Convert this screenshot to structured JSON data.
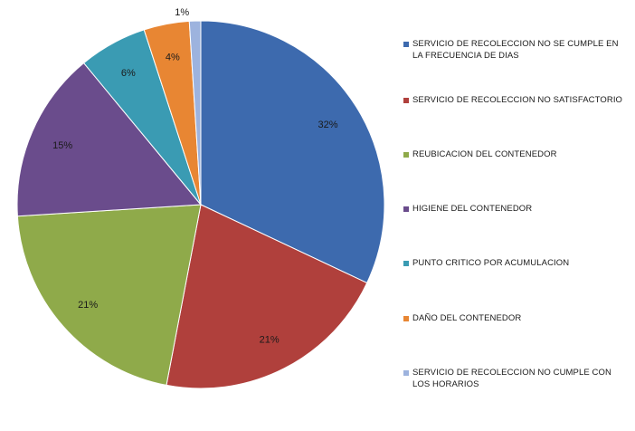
{
  "chart_data": {
    "type": "pie",
    "slices": [
      {
        "label": "SERVICIO DE RECOLECCION NO SE CUMPLE EN LA FRECUENCIA DE DIAS",
        "value": 32,
        "pct_text": "32%",
        "color": "#3D6AAE"
      },
      {
        "label": "SERVICIO DE RECOLECCION NO SATISFACTORIO",
        "value": 21,
        "pct_text": "21%",
        "color": "#B0403C"
      },
      {
        "label": "REUBICACION DEL CONTENEDOR",
        "value": 21,
        "pct_text": "21%",
        "color": "#8FAA4A"
      },
      {
        "label": "HIGIENE DEL CONTENEDOR",
        "value": 15,
        "pct_text": "15%",
        "color": "#6A4C8C"
      },
      {
        "label": "PUNTO CRITICO POR ACUMULACION",
        "value": 6,
        "pct_text": "6%",
        "color": "#3A9BB3"
      },
      {
        "label": "DAÑO DEL CONTENEDOR",
        "value": 4,
        "pct_text": "4%",
        "color": "#E88633"
      },
      {
        "label": "SERVICIO DE RECOLECCION NO CUMPLE CON LOS HORARIOS",
        "value": 1,
        "pct_text": "1%",
        "color": "#9DB3DE"
      }
    ],
    "legend_position": "right"
  }
}
